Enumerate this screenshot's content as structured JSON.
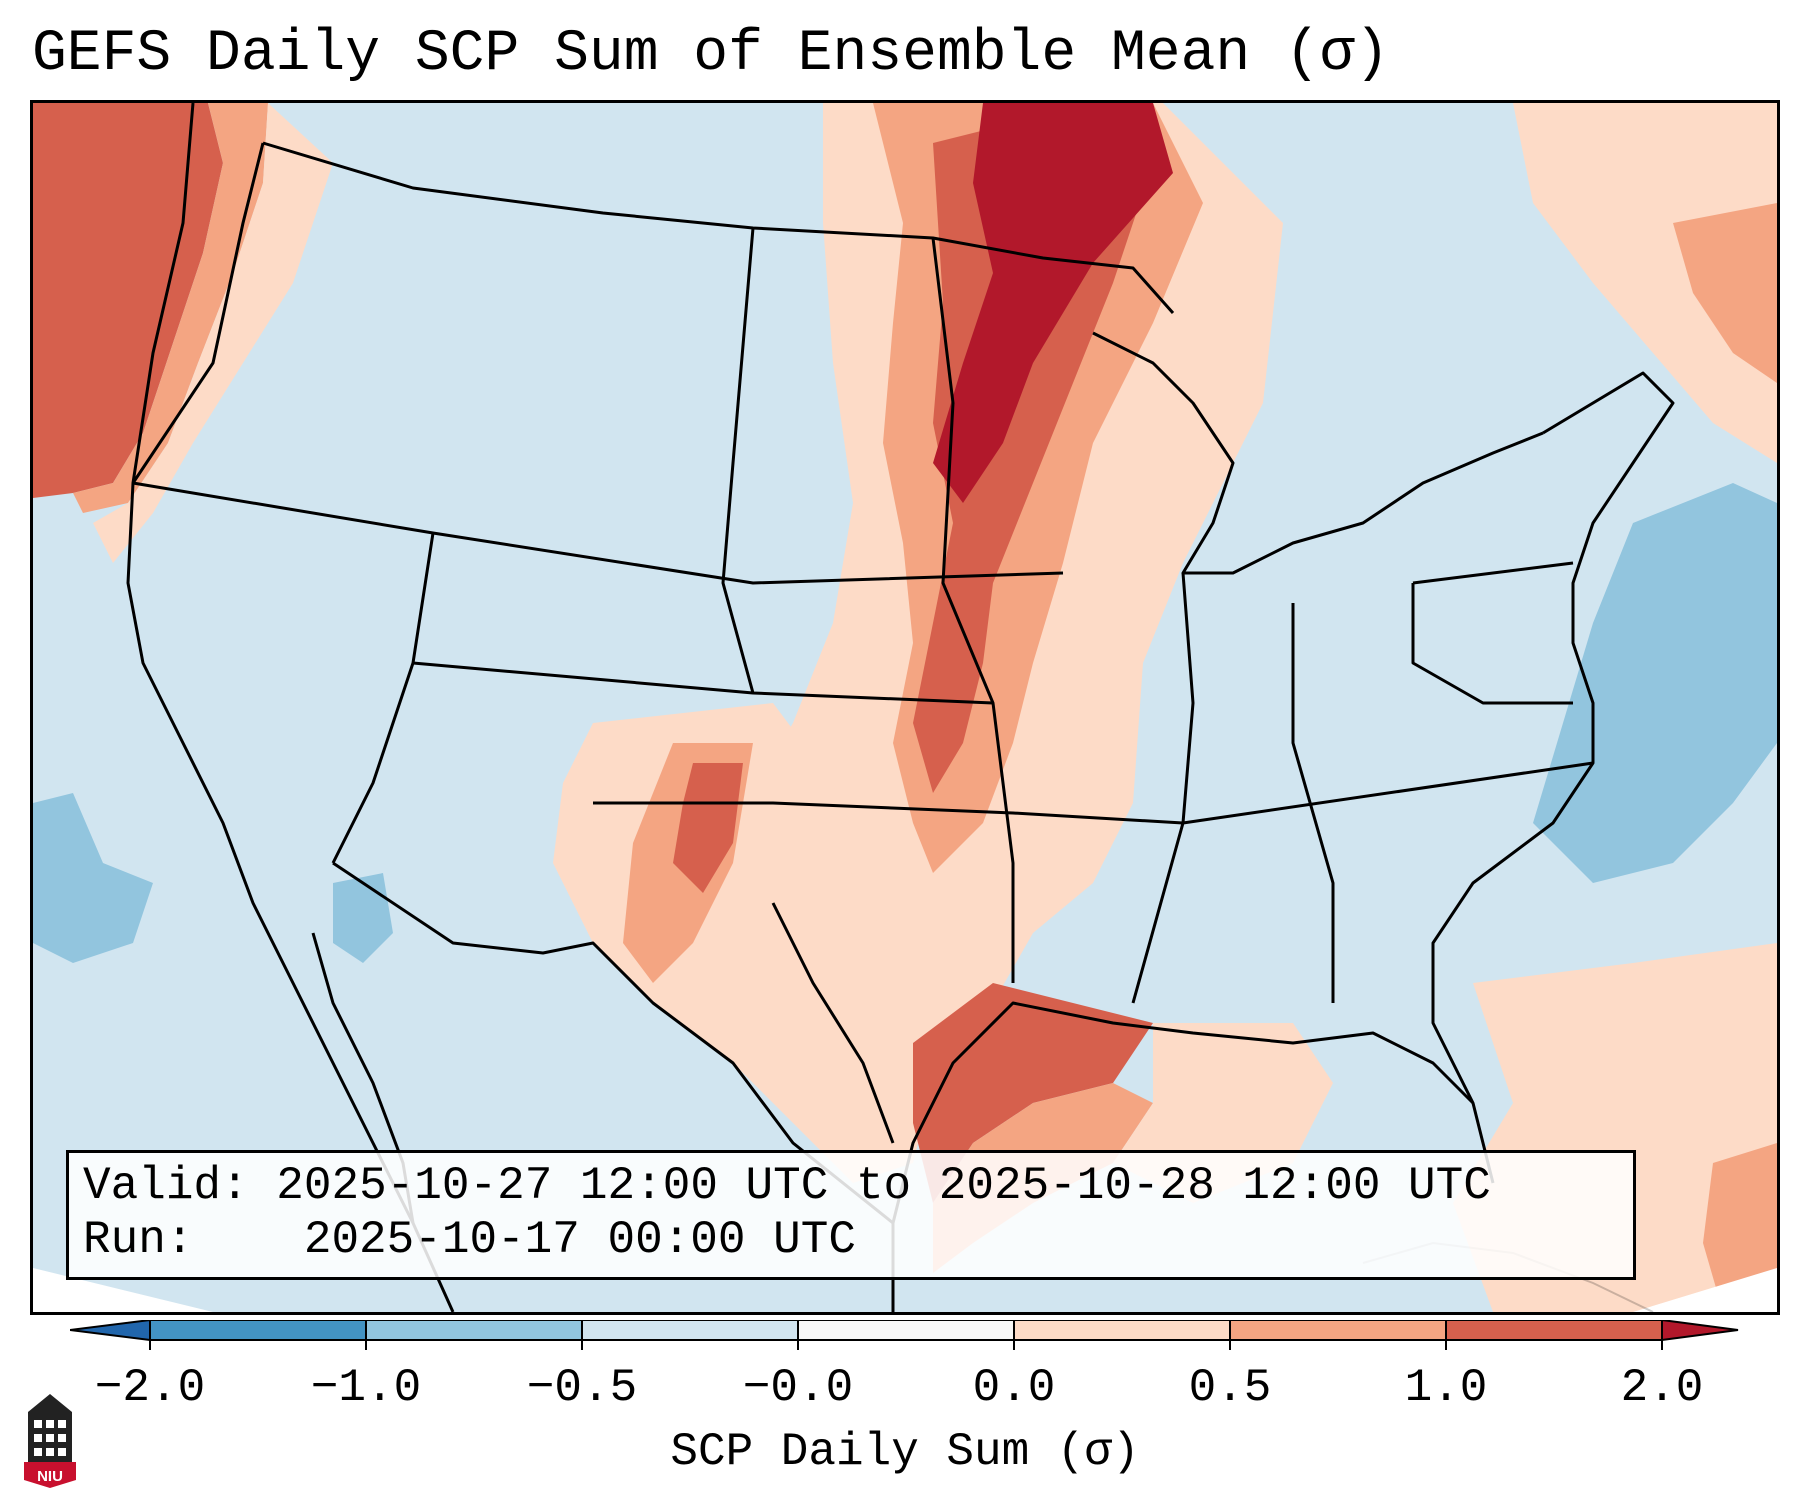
{
  "title": "GEFS Daily SCP Sum of Ensemble Mean (σ)",
  "info": {
    "valid_label": "Valid:",
    "valid_value": "2025-10-27 12:00 UTC to 2025-10-28 12:00 UTC",
    "run_label": "Run:",
    "run_value": "2025-10-17 00:00 UTC"
  },
  "colorbar": {
    "label": "SCP Daily Sum (σ)",
    "ticks": [
      "−2.0",
      "−1.0",
      "−0.5",
      "−0.0",
      "0.0",
      "0.5",
      "1.0",
      "2.0"
    ],
    "colors": [
      "#2166ac",
      "#4393c3",
      "#92c5de",
      "#d1e5f0",
      "#f7f7f7",
      "#fddbc7",
      "#f4a582",
      "#d6604d",
      "#b2182b"
    ]
  },
  "logo": {
    "text": "NIU"
  }
}
